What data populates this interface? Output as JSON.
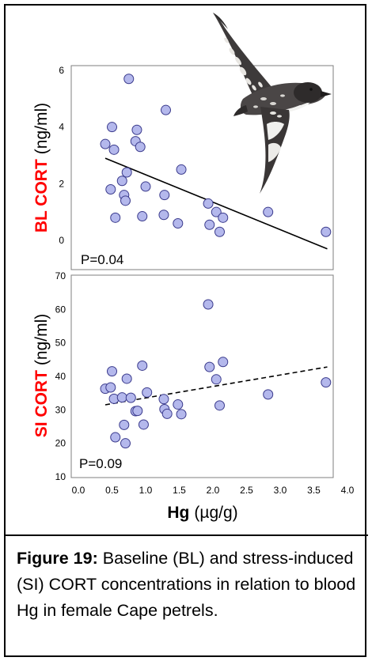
{
  "colors": {
    "point_fill": "#b4b8ec",
    "point_stroke": "#3a3a8c",
    "ylabel_red": "#ff0000"
  },
  "chart_data": [
    {
      "type": "scatter",
      "ylabel_bold": "BL CORT",
      "ylabel_unit": "(ng/ml)",
      "xlim": [
        0.0,
        4.0
      ],
      "ylim": [
        -0.5,
        6
      ],
      "yticks": [
        "0",
        "2",
        "4",
        "6"
      ],
      "pvalue": "P=0.04",
      "trend": {
        "style": "solid",
        "x": [
          0.4,
          3.7
        ],
        "y": [
          2.9,
          -0.3
        ]
      },
      "points": [
        {
          "x": 0.4,
          "y": 3.4
        },
        {
          "x": 0.48,
          "y": 1.8
        },
        {
          "x": 0.5,
          "y": 4.0
        },
        {
          "x": 0.53,
          "y": 3.2
        },
        {
          "x": 0.55,
          "y": 0.8
        },
        {
          "x": 0.65,
          "y": 2.1
        },
        {
          "x": 0.68,
          "y": 1.6
        },
        {
          "x": 0.7,
          "y": 1.4
        },
        {
          "x": 0.72,
          "y": 2.4
        },
        {
          "x": 0.75,
          "y": 5.7
        },
        {
          "x": 0.85,
          "y": 3.5
        },
        {
          "x": 0.87,
          "y": 3.9
        },
        {
          "x": 0.92,
          "y": 3.3
        },
        {
          "x": 0.95,
          "y": 0.85
        },
        {
          "x": 1.0,
          "y": 1.9
        },
        {
          "x": 1.27,
          "y": 0.9
        },
        {
          "x": 1.28,
          "y": 1.6
        },
        {
          "x": 1.3,
          "y": 4.6
        },
        {
          "x": 1.48,
          "y": 0.6
        },
        {
          "x": 1.53,
          "y": 2.5
        },
        {
          "x": 1.93,
          "y": 1.3
        },
        {
          "x": 1.95,
          "y": 0.55
        },
        {
          "x": 2.05,
          "y": 1.0
        },
        {
          "x": 2.1,
          "y": 0.3
        },
        {
          "x": 2.15,
          "y": 0.8
        },
        {
          "x": 2.82,
          "y": 1.0
        },
        {
          "x": 3.68,
          "y": 0.3
        }
      ]
    },
    {
      "type": "scatter",
      "ylabel_bold": "SI CORT",
      "ylabel_unit": "(ng/ml)",
      "xlabel_bold": "Hg",
      "xlabel_unit": "(µg/g)",
      "xlim": [
        0.0,
        4.0
      ],
      "ylim": [
        10,
        70
      ],
      "yticks": [
        "10",
        "20",
        "30",
        "40",
        "50",
        "60",
        "70"
      ],
      "xticks": [
        "0.0",
        "0.5",
        "1.0",
        "1.5",
        "2.0",
        "2.5",
        "3.0",
        "3.5",
        "4.0"
      ],
      "pvalue": "P=0.09",
      "trend": {
        "style": "dashed",
        "x": [
          0.4,
          3.7
        ],
        "y": [
          31.5,
          42.8
        ]
      },
      "points": [
        {
          "x": 0.4,
          "y": 36.3
        },
        {
          "x": 0.48,
          "y": 36.7
        },
        {
          "x": 0.5,
          "y": 41.5
        },
        {
          "x": 0.53,
          "y": 33.3
        },
        {
          "x": 0.55,
          "y": 21.8
        },
        {
          "x": 0.65,
          "y": 33.7
        },
        {
          "x": 0.68,
          "y": 25.5
        },
        {
          "x": 0.7,
          "y": 20.0
        },
        {
          "x": 0.72,
          "y": 39.3
        },
        {
          "x": 0.78,
          "y": 33.6
        },
        {
          "x": 0.85,
          "y": 29.6
        },
        {
          "x": 0.88,
          "y": 29.7
        },
        {
          "x": 0.95,
          "y": 43.2
        },
        {
          "x": 0.97,
          "y": 25.6
        },
        {
          "x": 1.02,
          "y": 35.2
        },
        {
          "x": 1.27,
          "y": 33.2
        },
        {
          "x": 1.28,
          "y": 30.2
        },
        {
          "x": 1.32,
          "y": 28.8
        },
        {
          "x": 1.48,
          "y": 31.6
        },
        {
          "x": 1.53,
          "y": 28.7
        },
        {
          "x": 1.93,
          "y": 61.5
        },
        {
          "x": 1.95,
          "y": 42.8
        },
        {
          "x": 2.05,
          "y": 39.1
        },
        {
          "x": 2.1,
          "y": 31.3
        },
        {
          "x": 2.15,
          "y": 44.3
        },
        {
          "x": 2.82,
          "y": 34.6
        },
        {
          "x": 3.68,
          "y": 38.2
        }
      ]
    }
  ],
  "caption": {
    "label": "Figure 19:",
    "text": " Baseline (BL) and stress-induced (SI) CORT concentrations in relation to blood Hg in female Cape petrels."
  }
}
